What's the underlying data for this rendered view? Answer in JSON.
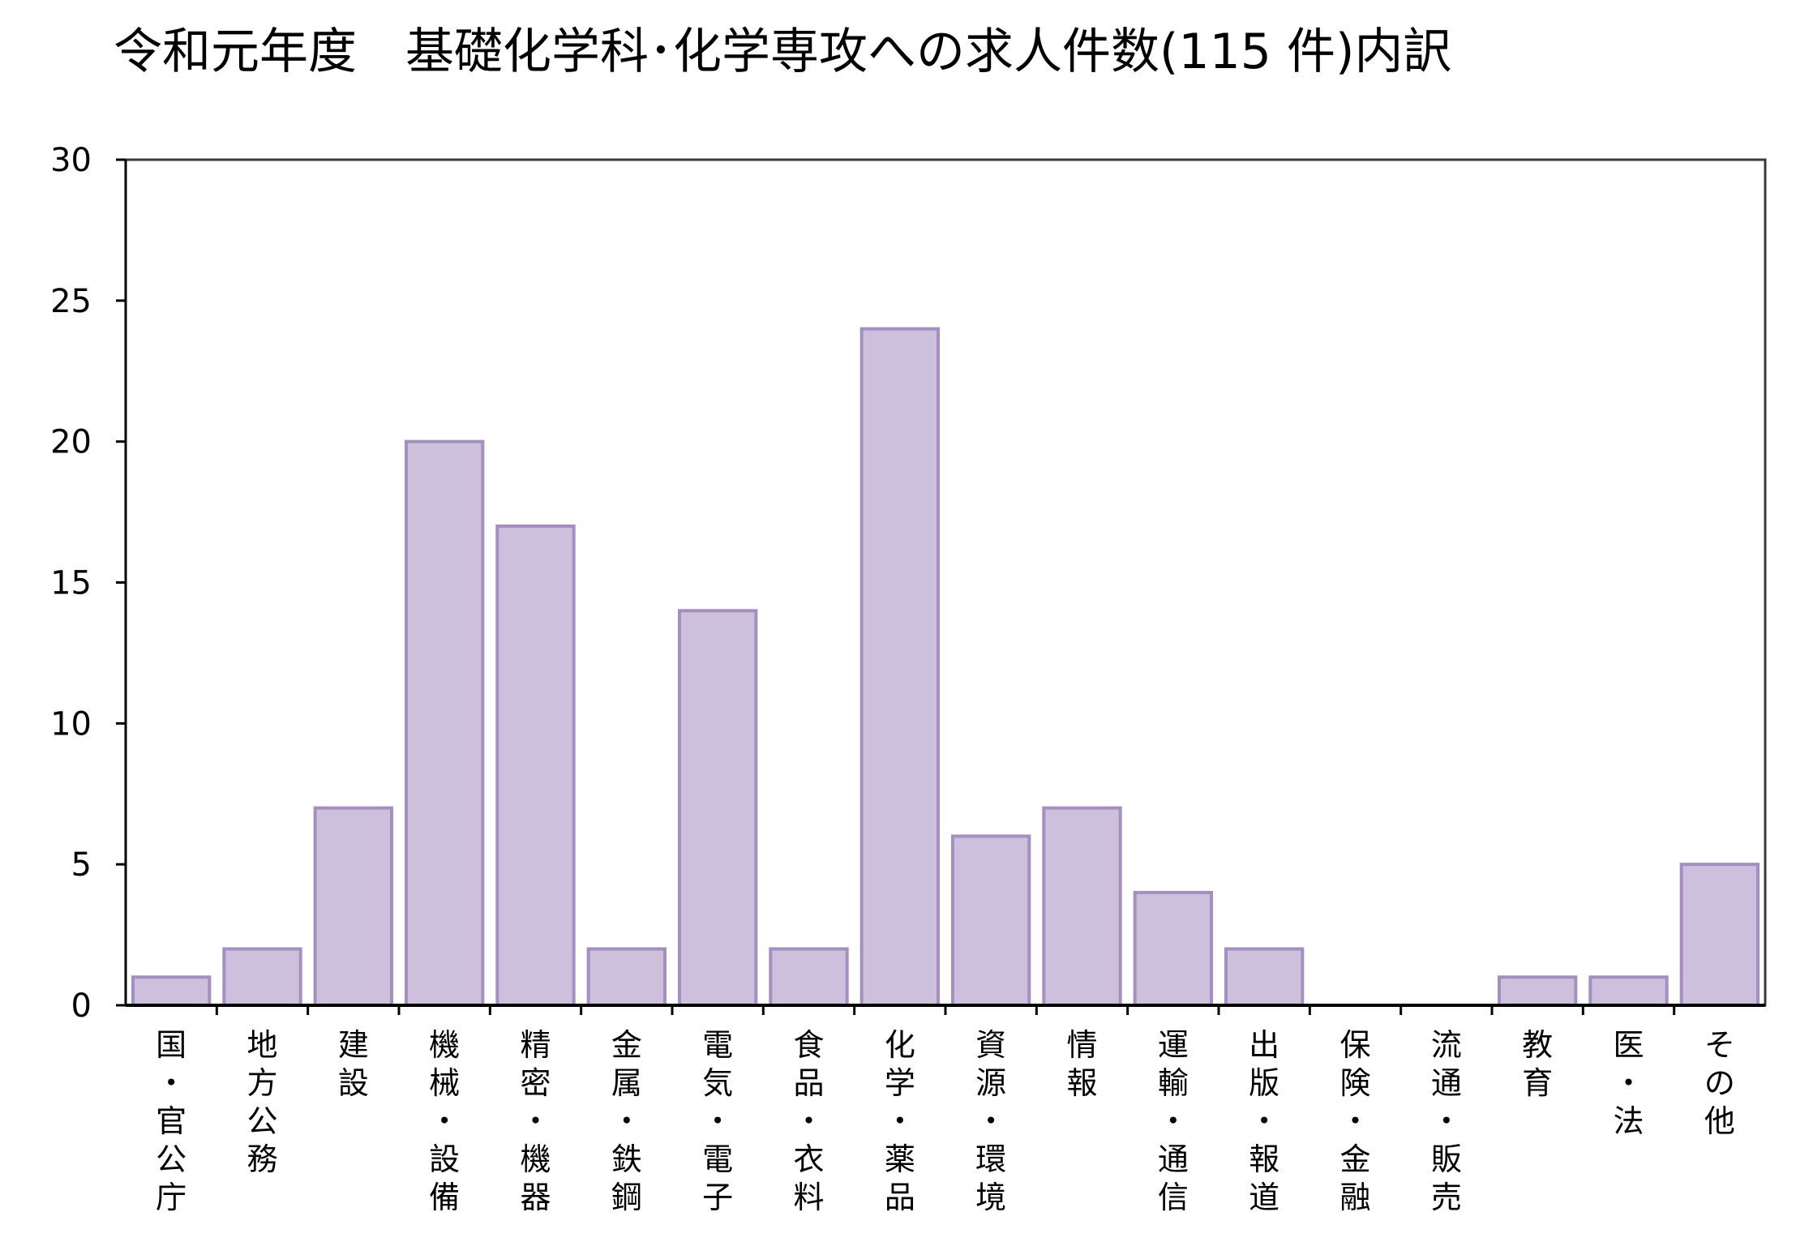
{
  "chart_data": {
    "type": "bar",
    "title": "令和元年度　基礎化学科･化学専攻への求人件数(115 件)内訳",
    "xlabel": "",
    "ylabel": "",
    "ylim": [
      0,
      30
    ],
    "yticks": [
      "0",
      "5",
      "10",
      "15",
      "20",
      "25",
      "30"
    ],
    "categories": [
      "国・官公庁",
      "地方公務",
      "建設",
      "機械・設備",
      "精密・機器",
      "金属・鉄鋼",
      "電気・電子",
      "食品・衣料",
      "化学・薬品",
      "資源・環境",
      "情報",
      "運輸・通信",
      "出版・報道",
      "保険・金融",
      "流通・販売",
      "教育",
      "医・法",
      "その他"
    ],
    "values": [
      1,
      2,
      7,
      20,
      17,
      2,
      14,
      2,
      24,
      6,
      7,
      4,
      2,
      0,
      0,
      1,
      1,
      5
    ],
    "grid": false,
    "legend": "none",
    "colors": {
      "bar_fill": "#cdc0dc",
      "bar_stroke": "#a48fc0",
      "axis": "#000000",
      "frame": "#3a3a3a"
    }
  }
}
